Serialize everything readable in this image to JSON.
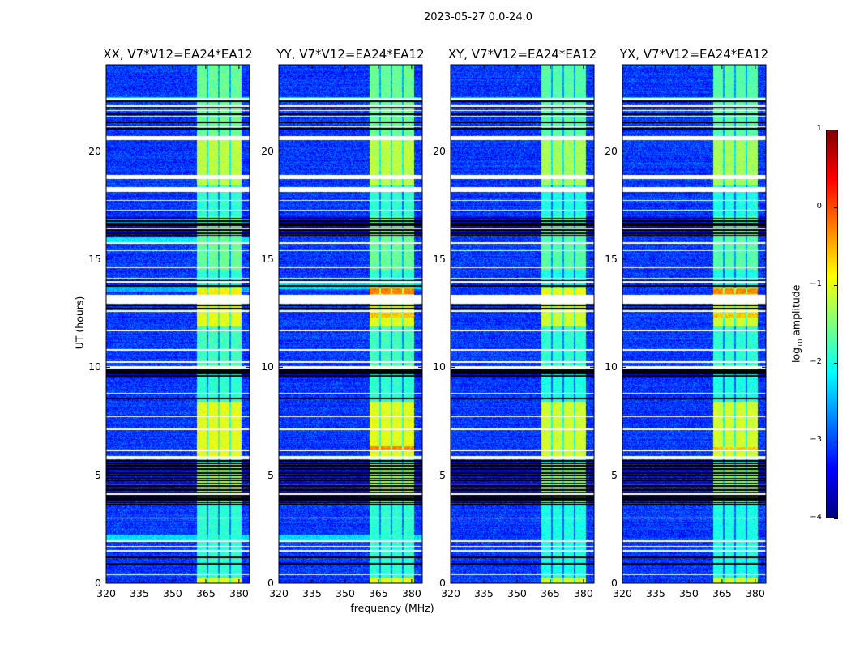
{
  "suptitle": "2023-05-27 0.0-24.0",
  "ylabel": "UT (hours)",
  "xlabel": "frequency (MHz)",
  "colorbar": {
    "label_prefix": "log",
    "label_sub": "10",
    "label_suffix": " amplitude",
    "range": [
      -4,
      1
    ],
    "ticks": [
      1,
      0,
      -1,
      -2,
      -3,
      -4
    ],
    "tick_labels": [
      "1",
      "0",
      "−1",
      "−2",
      "−3",
      "−4"
    ],
    "colormap": "jet"
  },
  "chart_data": [
    {
      "type": "heatmap",
      "title": "XX, V7*V12=EA24*EA12",
      "xlim": [
        320,
        384.8
      ],
      "ylim": [
        0,
        24
      ],
      "xticks": [
        320,
        335,
        350,
        365,
        380
      ],
      "xtick_labels": [
        "320",
        "335",
        "350",
        "365",
        "380"
      ],
      "yticks": [
        0,
        5,
        10,
        15,
        20
      ],
      "ytick_labels": [
        "0",
        "5",
        "10",
        "15",
        "20"
      ],
      "bright_rows": [
        [
          1.9,
          2.25,
          -2.3
        ],
        [
          15.7,
          16.0,
          -2.2
        ],
        [
          16.7,
          16.9,
          -2.3
        ],
        [
          22.3,
          22.5,
          -2.4
        ],
        [
          13.5,
          13.8,
          -2.5
        ]
      ],
      "hot": [
        [
          13.4,
          13.6,
          -0.8
        ]
      ]
    },
    {
      "type": "heatmap",
      "title": "YY, V7*V12=EA24*EA12",
      "xlim": [
        320,
        384.8
      ],
      "ylim": [
        0,
        24
      ],
      "xticks": [
        320,
        335,
        350,
        365,
        380
      ],
      "xtick_labels": [
        "320",
        "335",
        "350",
        "365",
        "380"
      ],
      "yticks": [
        0,
        5,
        10,
        15,
        20
      ],
      "ytick_labels": [
        "0",
        "5",
        "10",
        "15",
        "20"
      ],
      "bright_rows": [
        [
          1.9,
          2.25,
          -2.3
        ],
        [
          13.6,
          13.9,
          -2.2
        ],
        [
          22.3,
          22.5,
          -2.4
        ]
      ],
      "hot": [
        [
          13.4,
          13.65,
          -0.25
        ],
        [
          6.1,
          6.35,
          -0.3
        ],
        [
          12.3,
          12.5,
          -0.6
        ]
      ]
    },
    {
      "type": "heatmap",
      "title": "XY, V7*V12=EA24*EA12",
      "xlim": [
        320,
        384.8
      ],
      "ylim": [
        0,
        24
      ],
      "xticks": [
        320,
        335,
        350,
        365,
        380
      ],
      "xtick_labels": [
        "320",
        "335",
        "350",
        "365",
        "380"
      ],
      "yticks": [
        0,
        5,
        10,
        15,
        20
      ],
      "ytick_labels": [
        "0",
        "5",
        "10",
        "15",
        "20"
      ],
      "bright_rows": [
        [
          22.3,
          22.5,
          -2.5
        ]
      ],
      "hot": [
        [
          13.4,
          13.6,
          -0.9
        ]
      ]
    },
    {
      "type": "heatmap",
      "title": "YX, V7*V12=EA24*EA12",
      "xlim": [
        320,
        384.8
      ],
      "ylim": [
        0,
        24
      ],
      "xticks": [
        320,
        335,
        350,
        365,
        380
      ],
      "xtick_labels": [
        "320",
        "335",
        "350",
        "365",
        "380"
      ],
      "yticks": [
        0,
        5,
        10,
        15,
        20
      ],
      "ytick_labels": [
        "0",
        "5",
        "10",
        "15",
        "20"
      ],
      "bright_rows": [
        [
          22.3,
          22.5,
          -2.5
        ]
      ],
      "hot": [
        [
          13.4,
          13.65,
          -0.3
        ],
        [
          12.3,
          12.5,
          -0.6
        ],
        [
          6.1,
          6.3,
          -0.6
        ]
      ]
    }
  ],
  "common": {
    "background_level": -3.1,
    "band_mhz": [
      361,
      381
    ],
    "band_gaps_mhz": [
      365.8,
      371,
      376
    ],
    "band_segments_hours": [
      [
        0,
        0.25,
        -1.0
      ],
      [
        0.25,
        3.8,
        -1.9
      ],
      [
        3.8,
        5.6,
        -1.3
      ],
      [
        5.9,
        8.4,
        -1.0
      ],
      [
        8.4,
        9.9,
        -1.9
      ],
      [
        9.9,
        10.1,
        -1.0
      ],
      [
        10.1,
        11.9,
        -1.8
      ],
      [
        11.9,
        13.7,
        -1.0
      ],
      [
        13.7,
        14.5,
        -1.9
      ],
      [
        14.5,
        17.0,
        -1.6
      ],
      [
        17.0,
        18.3,
        -1.9
      ],
      [
        18.4,
        20.6,
        -1.2
      ],
      [
        20.6,
        24,
        -1.6
      ]
    ],
    "flagged_white_hours": [
      [
        22.35,
        22.45
      ],
      [
        22.05,
        22.12
      ],
      [
        21.85,
        21.9
      ],
      [
        21.6,
        21.65
      ],
      [
        21.1,
        21.15
      ],
      [
        20.5,
        20.7
      ],
      [
        18.7,
        18.9
      ],
      [
        18.1,
        18.35
      ],
      [
        17.7,
        17.75
      ],
      [
        17.25,
        17.3
      ],
      [
        16.38,
        16.43
      ],
      [
        15.73,
        15.78
      ],
      [
        15.38,
        15.43
      ],
      [
        14.58,
        14.63
      ],
      [
        14.1,
        14.15
      ],
      [
        13.93,
        13.98
      ],
      [
        12.95,
        13.35
      ],
      [
        12.55,
        12.62
      ],
      [
        11.68,
        11.73
      ],
      [
        10.78,
        10.83
      ],
      [
        10.2,
        10.27
      ],
      [
        9.95,
        10.05
      ],
      [
        8.78,
        8.83
      ],
      [
        7.68,
        7.73
      ],
      [
        7.1,
        7.15
      ],
      [
        6.13,
        6.18
      ],
      [
        5.75,
        5.9
      ],
      [
        4.58,
        4.63
      ],
      [
        4.1,
        4.15
      ],
      [
        3.0,
        3.05
      ],
      [
        1.93,
        1.98
      ],
      [
        1.68,
        1.73
      ],
      [
        1.48,
        1.53
      ],
      [
        0.38,
        0.42
      ]
    ],
    "flagged_black_hours": [
      0.9,
      1.2,
      3.65,
      3.9,
      4.05,
      4.3,
      4.5,
      4.75,
      5.0,
      5.1,
      5.3,
      5.45,
      5.55,
      5.65,
      8.55,
      9.6,
      9.75,
      9.85,
      12.7,
      12.85,
      13.75,
      14.0,
      16.2,
      16.4,
      16.6,
      16.75,
      18.25,
      21.05,
      21.35,
      21.7,
      22.05,
      22.3
    ],
    "striped_hours": [
      [
        3.7,
        5.7
      ],
      [
        16.1,
        17.0
      ],
      [
        9.5,
        9.9
      ]
    ]
  }
}
